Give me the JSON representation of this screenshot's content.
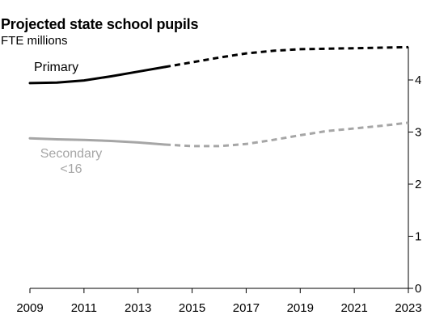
{
  "chart_data": {
    "type": "line",
    "title": "Projected state school pupils",
    "subtitle": "FTE millions",
    "xlabel": "",
    "ylabel": "",
    "xlim": [
      2009,
      2023
    ],
    "ylim": [
      0,
      4.6
    ],
    "x_ticks": [
      "2009",
      "2011",
      "2013",
      "2015",
      "2017",
      "2019",
      "2021",
      "2023"
    ],
    "y_ticks": [
      "0",
      "1",
      "2",
      "3",
      "4"
    ],
    "grid": false,
    "y_axis_side": "right",
    "projection_starts": 2014,
    "series": [
      {
        "name": "Primary",
        "color": "#000000",
        "x": [
          2009,
          2010,
          2011,
          2012,
          2013,
          2014,
          2015,
          2016,
          2017,
          2018,
          2019,
          2020,
          2021,
          2022,
          2023
        ],
        "values": [
          3.94,
          3.95,
          3.99,
          4.07,
          4.16,
          4.25,
          4.34,
          4.43,
          4.51,
          4.56,
          4.59,
          4.6,
          4.61,
          4.62,
          4.63
        ]
      },
      {
        "name": "Secondary\n<16",
        "color": "#a6a6a6",
        "x": [
          2009,
          2010,
          2011,
          2012,
          2013,
          2014,
          2015,
          2016,
          2017,
          2018,
          2019,
          2020,
          2021,
          2022,
          2023
        ],
        "values": [
          2.88,
          2.86,
          2.85,
          2.83,
          2.8,
          2.76,
          2.73,
          2.73,
          2.77,
          2.85,
          2.94,
          3.02,
          3.07,
          3.12,
          3.18
        ]
      }
    ]
  }
}
